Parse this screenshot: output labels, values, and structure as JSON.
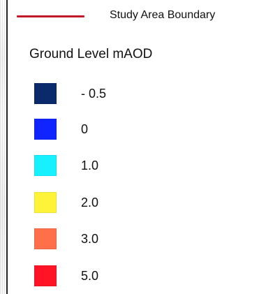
{
  "legend": {
    "boundary": {
      "label": "Study Area Boundary",
      "color": "#c11b2b"
    },
    "ground_level": {
      "title": "Ground Level mAOD",
      "items": [
        {
          "label": "- 0.5",
          "color": "#0b2a6b"
        },
        {
          "label": "0",
          "color": "#1024ff"
        },
        {
          "label": "1.0",
          "color": "#17f0ff"
        },
        {
          "label": "2.0",
          "color": "#fff33a"
        },
        {
          "label": "3.0",
          "color": "#ff6f4a"
        },
        {
          "label": "5.0",
          "color": "#ff1426"
        }
      ]
    }
  }
}
